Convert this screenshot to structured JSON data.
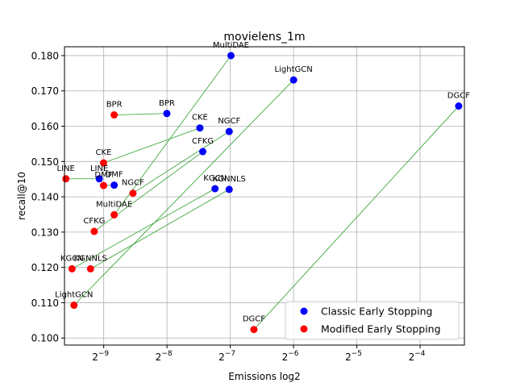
{
  "chart_data": {
    "type": "scatter",
    "title": "movielens_1m",
    "xlabel": "Emissions log2",
    "ylabel": "recall@10",
    "x_scale": "log2",
    "x_ticks": [
      {
        "value": 0.001953125,
        "base": "2",
        "exp": "−9"
      },
      {
        "value": 0.00390625,
        "base": "2",
        "exp": "−8"
      },
      {
        "value": 0.0078125,
        "base": "2",
        "exp": "−7"
      },
      {
        "value": 0.015625,
        "base": "2",
        "exp": "−6"
      },
      {
        "value": 0.03125,
        "base": "2",
        "exp": "−5"
      },
      {
        "value": 0.0625,
        "base": "2",
        "exp": "−4"
      }
    ],
    "y_ticks": [
      "0.100",
      "0.110",
      "0.120",
      "0.130",
      "0.140",
      "0.150",
      "0.160",
      "0.170",
      "0.180"
    ],
    "ylim": [
      0.098,
      0.1825
    ],
    "grid": true,
    "legend_position": "bottom-right",
    "colors": {
      "classic": "#0000ff",
      "modified": "#ff0000",
      "link": "#2ca02c",
      "grid": "#b0b0b0"
    },
    "series": [
      {
        "name": "Classic Early Stopping",
        "key": "classic",
        "points": [
          {
            "label": "MultiDAE",
            "x": 0.00787,
            "y": 0.18
          },
          {
            "label": "LightGCN",
            "x": 0.01563,
            "y": 0.1731
          },
          {
            "label": "DGCF",
            "x": 0.09536,
            "y": 0.1657
          },
          {
            "label": "BPR",
            "x": 0.0039,
            "y": 0.1636
          },
          {
            "label": "CKE",
            "x": 0.0056,
            "y": 0.1595
          },
          {
            "label": "NGCF",
            "x": 0.00772,
            "y": 0.1585
          },
          {
            "label": "CFKG",
            "x": 0.00578,
            "y": 0.1528
          },
          {
            "label": "LINE",
            "x": 0.00186,
            "y": 0.1451
          },
          {
            "label": "DMF",
            "x": 0.00219,
            "y": 0.1433
          },
          {
            "label": "KGCN",
            "x": 0.00661,
            "y": 0.1423
          },
          {
            "label": "KGNNLS",
            "x": 0.00772,
            "y": 0.1421
          }
        ]
      },
      {
        "name": "Modified Early Stopping",
        "key": "modified",
        "points": [
          {
            "label": "BPR",
            "x": 0.00219,
            "y": 0.1632
          },
          {
            "label": "CKE",
            "x": 0.00195,
            "y": 0.1496
          },
          {
            "label": "LINE",
            "x": 0.00129,
            "y": 0.1451
          },
          {
            "label": "DMF",
            "x": 0.00195,
            "y": 0.1432
          },
          {
            "label": "NGCF",
            "x": 0.00269,
            "y": 0.141
          },
          {
            "label": "MultiDAE",
            "x": 0.00219,
            "y": 0.1349
          },
          {
            "label": "CFKG",
            "x": 0.00176,
            "y": 0.1302
          },
          {
            "label": "KGCN",
            "x": 0.00138,
            "y": 0.1196
          },
          {
            "label": "KGNNLS",
            "x": 0.00169,
            "y": 0.1196
          },
          {
            "label": "LightGCN",
            "x": 0.00141,
            "y": 0.1093
          },
          {
            "label": "DGCF",
            "x": 0.01012,
            "y": 0.1024
          }
        ]
      }
    ]
  }
}
